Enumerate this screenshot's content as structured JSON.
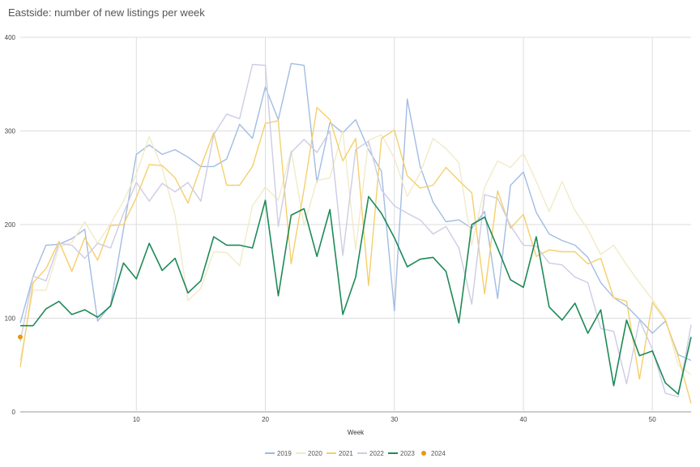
{
  "chart_data": {
    "type": "line",
    "title": "Eastside: number of new listings per week",
    "xlabel": "Week",
    "ylabel": "",
    "xlim": [
      1,
      53
    ],
    "ylim": [
      0,
      400
    ],
    "x_ticks": [
      10,
      20,
      30,
      40,
      50
    ],
    "y_ticks": [
      0,
      100,
      200,
      300,
      400
    ],
    "grid": true,
    "legend_position": "bottom",
    "series": [
      {
        "name": "2019",
        "color": "#9DB8E3",
        "width": 1.4,
        "opacity": 0.95,
        "values": [
          95,
          145,
          178,
          179,
          185,
          195,
          97,
          114,
          195,
          275,
          285,
          275,
          280,
          272,
          262,
          262,
          270,
          307,
          292,
          347,
          312,
          372,
          370,
          245,
          309,
          298,
          312,
          280,
          257,
          108,
          334,
          262,
          224,
          203,
          205,
          196,
          214,
          121,
          242,
          256,
          213,
          190,
          183,
          178,
          165,
          138,
          122,
          113,
          99,
          84,
          97,
          61,
          55
        ]
      },
      {
        "name": "2020",
        "color": "#F1EBC8",
        "width": 1.4,
        "opacity": 1,
        "values": [
          55,
          130,
          130,
          176,
          181,
          203,
          180,
          201,
          225,
          254,
          294,
          260,
          210,
          119,
          132,
          171,
          170,
          156,
          220,
          240,
          226,
          279,
          199,
          247,
          250,
          300,
          173,
          290,
          296,
          271,
          230,
          255,
          292,
          281,
          266,
          178,
          240,
          268,
          261,
          276,
          246,
          214,
          246,
          215,
          195,
          168,
          178,
          157,
          138,
          120,
          100,
          50,
          40
        ]
      },
      {
        "name": "2021",
        "color": "#F5CF6B",
        "width": 1.4,
        "opacity": 1,
        "values": [
          48,
          138,
          153,
          182,
          150,
          186,
          162,
          199,
          200,
          229,
          264,
          263,
          250,
          223,
          262,
          298,
          242,
          242,
          262,
          308,
          311,
          158,
          238,
          325,
          312,
          268,
          292,
          135,
          292,
          301,
          252,
          239,
          242,
          261,
          247,
          234,
          126,
          236,
          196,
          211,
          166,
          173,
          171,
          171,
          158,
          164,
          122,
          118,
          35,
          117,
          98,
          59,
          9
        ]
      },
      {
        "name": "2022",
        "color": "#CDCCE5",
        "width": 1.4,
        "opacity": 1,
        "values": [
          75,
          145,
          140,
          180,
          178,
          164,
          180,
          175,
          212,
          245,
          225,
          244,
          235,
          245,
          225,
          296,
          318,
          313,
          371,
          370,
          198,
          277,
          291,
          277,
          300,
          167,
          280,
          289,
          237,
          220,
          212,
          205,
          190,
          198,
          175,
          115,
          232,
          228,
          199,
          178,
          177,
          159,
          157,
          144,
          138,
          89,
          86,
          30,
          98,
          67,
          20,
          16,
          93
        ]
      },
      {
        "name": "2023",
        "color": "#1E8A57",
        "width": 1.6,
        "opacity": 1,
        "values": [
          92,
          92,
          110,
          118,
          104,
          109,
          101,
          113,
          159,
          142,
          180,
          151,
          164,
          127,
          140,
          187,
          178,
          178,
          175,
          226,
          124,
          210,
          217,
          166,
          216,
          104,
          144,
          230,
          212,
          186,
          155,
          163,
          165,
          150,
          95,
          200,
          208,
          175,
          141,
          133,
          187,
          112,
          98,
          116,
          84,
          109,
          28,
          98,
          60,
          65,
          31,
          19,
          80
        ]
      },
      {
        "name": "2024",
        "color": "#E69A12",
        "width": 1.4,
        "opacity": 1,
        "marker": "point",
        "values": [
          80
        ]
      }
    ]
  }
}
